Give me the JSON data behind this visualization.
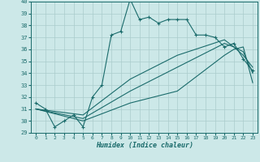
{
  "xlabel": "Humidex (Indice chaleur)",
  "xlim": [
    -0.5,
    23.5
  ],
  "ylim": [
    29,
    40
  ],
  "yticks": [
    29,
    30,
    31,
    32,
    33,
    34,
    35,
    36,
    37,
    38,
    39,
    40
  ],
  "xticks": [
    0,
    1,
    2,
    3,
    4,
    5,
    6,
    7,
    8,
    9,
    10,
    11,
    12,
    13,
    14,
    15,
    16,
    17,
    18,
    19,
    20,
    21,
    22,
    23
  ],
  "bg_color": "#cce8e8",
  "line_color": "#1a6b6b",
  "grid_color": "#aacccc",
  "line1_x": [
    0,
    1,
    2,
    3,
    4,
    5,
    6,
    7,
    8,
    9,
    10,
    11,
    12,
    13,
    14,
    15,
    16,
    17,
    18,
    19,
    20,
    21,
    22,
    23
  ],
  "line1_y": [
    31.5,
    31.0,
    29.5,
    30.0,
    30.5,
    29.5,
    32.0,
    33.0,
    37.2,
    37.5,
    40.2,
    38.5,
    38.7,
    38.2,
    38.5,
    38.5,
    38.5,
    37.2,
    37.2,
    37.0,
    36.2,
    36.5,
    35.2,
    34.2
  ],
  "line2_x": [
    0,
    5,
    10,
    15,
    20,
    21,
    22,
    23
  ],
  "line2_y": [
    31.0,
    30.0,
    31.5,
    32.5,
    35.5,
    36.0,
    36.2,
    33.2
  ],
  "line3_x": [
    0,
    5,
    10,
    15,
    20,
    21,
    22,
    23
  ],
  "line3_y": [
    31.0,
    30.2,
    32.5,
    34.5,
    36.5,
    36.2,
    35.8,
    34.0
  ],
  "line4_x": [
    0,
    5,
    10,
    15,
    20,
    21,
    22,
    23
  ],
  "line4_y": [
    31.0,
    30.5,
    33.5,
    35.5,
    36.8,
    36.2,
    35.5,
    34.5
  ]
}
